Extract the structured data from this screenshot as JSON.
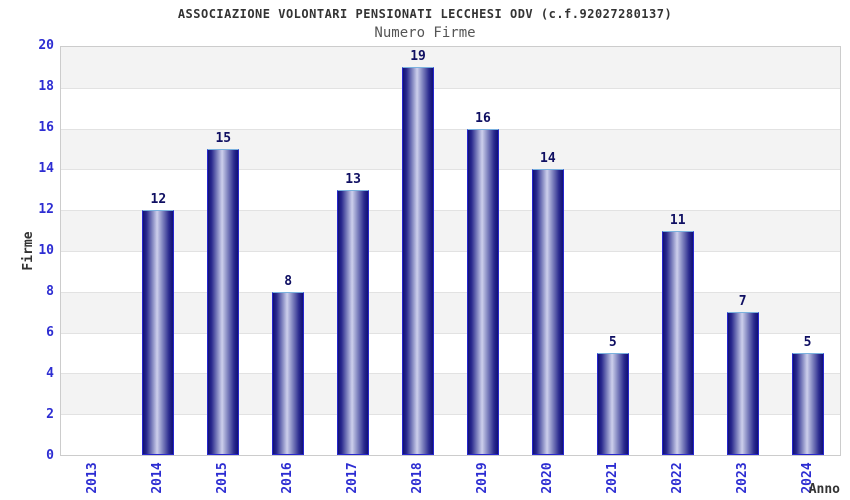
{
  "chart_data": {
    "type": "bar",
    "title": "ASSOCIAZIONE VOLONTARI PENSIONATI LECCHESI ODV (c.f.92027280137)",
    "subtitle": "Numero Firme",
    "xlabel": "Anno",
    "ylabel": "Firme",
    "categories": [
      "2013",
      "2014",
      "2015",
      "2016",
      "2017",
      "2018",
      "2019",
      "2020",
      "2021",
      "2022",
      "2023",
      "2024"
    ],
    "values": [
      0,
      12,
      15,
      8,
      13,
      19,
      16,
      14,
      5,
      11,
      7,
      5
    ],
    "ylim": [
      0,
      20
    ],
    "ytick_step": 2,
    "grid": "horizontal-bands-alternating",
    "legend": "none",
    "value_labels_shown": true
  },
  "colors": {
    "title": "#333333",
    "subtitle": "#555555",
    "axis_tick_label": "#2d2dd2",
    "axis_title": "#333333",
    "value_label": "#0f0f62",
    "band_gray": "#f3f3f3",
    "band_white": "#ffffff",
    "gridline": "#e2e2e2",
    "plot_border": "#cccccc",
    "bar_side_edge": "#2626cc",
    "bar_top_edge": "#7ab1de",
    "bar_dark": "#101074",
    "bar_light": "#cdd0ec"
  }
}
